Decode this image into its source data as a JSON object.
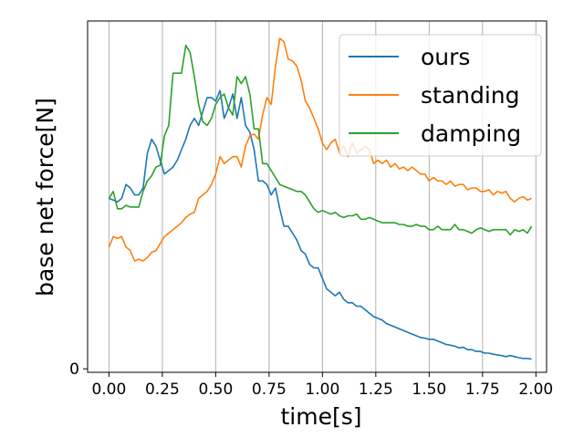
{
  "chart_data": {
    "type": "line",
    "xlabel": "time[s]",
    "ylabel": "base net force[N]",
    "xlim": [
      -0.1,
      2.05
    ],
    "ylim": [
      -0.1,
      10.0
    ],
    "x_ticks": [
      "0.00",
      "0.25",
      "0.50",
      "0.75",
      "1.00",
      "1.25",
      "1.50",
      "1.75",
      "2.00"
    ],
    "x_tick_values": [
      0,
      0.25,
      0.5,
      0.75,
      1.0,
      1.25,
      1.5,
      1.75,
      2.0
    ],
    "y_ticks": [
      "0"
    ],
    "y_tick_values": [
      0
    ],
    "grid": "vertical",
    "legend_position": "top-right",
    "series": [
      {
        "name": "ours",
        "color": "#1f77b4",
        "points": [
          [
            0,
            4.9
          ],
          [
            0.02,
            4.85
          ],
          [
            0.04,
            4.8
          ],
          [
            0.06,
            4.9
          ],
          [
            0.08,
            5.3
          ],
          [
            0.1,
            5.2
          ],
          [
            0.12,
            5.0
          ],
          [
            0.14,
            5.0
          ],
          [
            0.16,
            5.2
          ],
          [
            0.18,
            6.2
          ],
          [
            0.2,
            6.6
          ],
          [
            0.22,
            6.4
          ],
          [
            0.24,
            6.0
          ],
          [
            0.26,
            5.6
          ],
          [
            0.28,
            5.7
          ],
          [
            0.3,
            5.8
          ],
          [
            0.32,
            6.0
          ],
          [
            0.34,
            6.3
          ],
          [
            0.36,
            6.6
          ],
          [
            0.38,
            7.0
          ],
          [
            0.4,
            7.2
          ],
          [
            0.42,
            7.0
          ],
          [
            0.44,
            7.4
          ],
          [
            0.46,
            7.8
          ],
          [
            0.48,
            7.8
          ],
          [
            0.5,
            7.7
          ],
          [
            0.52,
            8.0
          ],
          [
            0.54,
            7.2
          ],
          [
            0.56,
            7.5
          ],
          [
            0.58,
            7.9
          ],
          [
            0.6,
            7.2
          ],
          [
            0.62,
            7.8
          ],
          [
            0.64,
            7.0
          ],
          [
            0.66,
            6.8
          ],
          [
            0.68,
            6.3
          ],
          [
            0.7,
            5.4
          ],
          [
            0.72,
            5.4
          ],
          [
            0.74,
            5.3
          ],
          [
            0.76,
            5.0
          ],
          [
            0.78,
            5.2
          ],
          [
            0.8,
            4.6
          ],
          [
            0.82,
            4.1
          ],
          [
            0.84,
            4.1
          ],
          [
            0.86,
            3.9
          ],
          [
            0.88,
            3.7
          ],
          [
            0.9,
            3.4
          ],
          [
            0.92,
            3.3
          ],
          [
            0.94,
            3.0
          ],
          [
            0.96,
            2.9
          ],
          [
            0.98,
            2.9
          ],
          [
            1.0,
            2.6
          ],
          [
            1.02,
            2.3
          ],
          [
            1.04,
            2.2
          ],
          [
            1.06,
            2.1
          ],
          [
            1.08,
            2.2
          ],
          [
            1.1,
            2.0
          ],
          [
            1.12,
            1.9
          ],
          [
            1.14,
            1.9
          ],
          [
            1.16,
            1.8
          ],
          [
            1.18,
            1.8
          ],
          [
            1.2,
            1.7
          ],
          [
            1.22,
            1.6
          ],
          [
            1.24,
            1.5
          ],
          [
            1.26,
            1.45
          ],
          [
            1.28,
            1.4
          ],
          [
            1.3,
            1.3
          ],
          [
            1.32,
            1.25
          ],
          [
            1.34,
            1.2
          ],
          [
            1.36,
            1.15
          ],
          [
            1.38,
            1.1
          ],
          [
            1.4,
            1.05
          ],
          [
            1.42,
            1.0
          ],
          [
            1.44,
            0.95
          ],
          [
            1.46,
            0.9
          ],
          [
            1.48,
            0.88
          ],
          [
            1.5,
            0.85
          ],
          [
            1.52,
            0.85
          ],
          [
            1.54,
            0.8
          ],
          [
            1.56,
            0.75
          ],
          [
            1.58,
            0.7
          ],
          [
            1.6,
            0.68
          ],
          [
            1.62,
            0.65
          ],
          [
            1.64,
            0.6
          ],
          [
            1.66,
            0.62
          ],
          [
            1.68,
            0.55
          ],
          [
            1.7,
            0.55
          ],
          [
            1.72,
            0.5
          ],
          [
            1.74,
            0.5
          ],
          [
            1.76,
            0.45
          ],
          [
            1.78,
            0.45
          ],
          [
            1.8,
            0.42
          ],
          [
            1.82,
            0.4
          ],
          [
            1.84,
            0.38
          ],
          [
            1.86,
            0.35
          ],
          [
            1.88,
            0.38
          ],
          [
            1.9,
            0.35
          ],
          [
            1.92,
            0.32
          ],
          [
            1.94,
            0.3
          ],
          [
            1.96,
            0.3
          ],
          [
            1.98,
            0.28
          ]
        ]
      },
      {
        "name": "standing",
        "color": "#ff7f0e",
        "points": [
          [
            0,
            3.5
          ],
          [
            0.02,
            3.8
          ],
          [
            0.04,
            3.75
          ],
          [
            0.06,
            3.8
          ],
          [
            0.08,
            3.5
          ],
          [
            0.1,
            3.4
          ],
          [
            0.12,
            3.1
          ],
          [
            0.14,
            3.15
          ],
          [
            0.16,
            3.1
          ],
          [
            0.18,
            3.2
          ],
          [
            0.2,
            3.35
          ],
          [
            0.22,
            3.4
          ],
          [
            0.24,
            3.6
          ],
          [
            0.26,
            3.8
          ],
          [
            0.28,
            3.9
          ],
          [
            0.3,
            4.0
          ],
          [
            0.32,
            4.1
          ],
          [
            0.34,
            4.2
          ],
          [
            0.36,
            4.35
          ],
          [
            0.38,
            4.45
          ],
          [
            0.4,
            4.5
          ],
          [
            0.42,
            4.9
          ],
          [
            0.44,
            5.0
          ],
          [
            0.46,
            5.1
          ],
          [
            0.48,
            5.3
          ],
          [
            0.5,
            5.6
          ],
          [
            0.52,
            6.1
          ],
          [
            0.54,
            5.9
          ],
          [
            0.56,
            6.0
          ],
          [
            0.58,
            6.1
          ],
          [
            0.6,
            6.1
          ],
          [
            0.62,
            5.8
          ],
          [
            0.64,
            6.4
          ],
          [
            0.66,
            6.7
          ],
          [
            0.68,
            6.75
          ],
          [
            0.7,
            6.6
          ],
          [
            0.72,
            7.3
          ],
          [
            0.74,
            7.8
          ],
          [
            0.76,
            7.6
          ],
          [
            0.78,
            8.7
          ],
          [
            0.8,
            9.5
          ],
          [
            0.82,
            9.4
          ],
          [
            0.84,
            8.9
          ],
          [
            0.86,
            8.85
          ],
          [
            0.88,
            8.7
          ],
          [
            0.9,
            8.3
          ],
          [
            0.92,
            7.7
          ],
          [
            0.94,
            7.5
          ],
          [
            0.96,
            7.2
          ],
          [
            0.98,
            6.9
          ],
          [
            1.0,
            6.5
          ],
          [
            1.02,
            6.3
          ],
          [
            1.04,
            6.5
          ],
          [
            1.06,
            6.6
          ],
          [
            1.08,
            6.2
          ],
          [
            1.1,
            6.4
          ],
          [
            1.12,
            6.1
          ],
          [
            1.14,
            6.5
          ],
          [
            1.16,
            6.2
          ],
          [
            1.18,
            6.3
          ],
          [
            1.2,
            6.4
          ],
          [
            1.22,
            6.3
          ],
          [
            1.24,
            5.9
          ],
          [
            1.26,
            6.0
          ],
          [
            1.28,
            5.9
          ],
          [
            1.3,
            6.0
          ],
          [
            1.32,
            5.8
          ],
          [
            1.34,
            5.9
          ],
          [
            1.36,
            5.75
          ],
          [
            1.38,
            5.8
          ],
          [
            1.4,
            5.7
          ],
          [
            1.42,
            5.8
          ],
          [
            1.44,
            5.7
          ],
          [
            1.46,
            5.6
          ],
          [
            1.48,
            5.6
          ],
          [
            1.5,
            5.4
          ],
          [
            1.52,
            5.5
          ],
          [
            1.54,
            5.4
          ],
          [
            1.56,
            5.4
          ],
          [
            1.58,
            5.3
          ],
          [
            1.6,
            5.4
          ],
          [
            1.62,
            5.25
          ],
          [
            1.64,
            5.3
          ],
          [
            1.66,
            5.3
          ],
          [
            1.68,
            5.15
          ],
          [
            1.7,
            5.2
          ],
          [
            1.72,
            5.2
          ],
          [
            1.74,
            5.1
          ],
          [
            1.76,
            5.1
          ],
          [
            1.78,
            5.15
          ],
          [
            1.8,
            5.0
          ],
          [
            1.82,
            5.1
          ],
          [
            1.84,
            5.05
          ],
          [
            1.86,
            5.1
          ],
          [
            1.88,
            4.9
          ],
          [
            1.9,
            4.8
          ],
          [
            1.92,
            4.9
          ],
          [
            1.94,
            4.95
          ],
          [
            1.96,
            4.85
          ],
          [
            1.98,
            4.9
          ]
        ]
      },
      {
        "name": "damping",
        "color": "#2ca02c",
        "points": [
          [
            0,
            4.9
          ],
          [
            0.02,
            5.1
          ],
          [
            0.04,
            4.6
          ],
          [
            0.06,
            4.6
          ],
          [
            0.08,
            4.7
          ],
          [
            0.1,
            4.65
          ],
          [
            0.12,
            4.65
          ],
          [
            0.14,
            4.65
          ],
          [
            0.16,
            5.1
          ],
          [
            0.18,
            5.4
          ],
          [
            0.2,
            5.55
          ],
          [
            0.22,
            5.8
          ],
          [
            0.24,
            5.85
          ],
          [
            0.26,
            6.7
          ],
          [
            0.28,
            7.0
          ],
          [
            0.3,
            8.5
          ],
          [
            0.32,
            8.5
          ],
          [
            0.34,
            8.5
          ],
          [
            0.36,
            9.3
          ],
          [
            0.38,
            9.1
          ],
          [
            0.4,
            8.4
          ],
          [
            0.42,
            7.6
          ],
          [
            0.44,
            7.1
          ],
          [
            0.46,
            7.0
          ],
          [
            0.48,
            7.2
          ],
          [
            0.5,
            7.6
          ],
          [
            0.52,
            7.8
          ],
          [
            0.54,
            7.9
          ],
          [
            0.56,
            7.5
          ],
          [
            0.58,
            7.3
          ],
          [
            0.6,
            8.4
          ],
          [
            0.62,
            8.2
          ],
          [
            0.64,
            8.4
          ],
          [
            0.66,
            7.9
          ],
          [
            0.68,
            6.9
          ],
          [
            0.7,
            6.9
          ],
          [
            0.72,
            5.9
          ],
          [
            0.74,
            5.9
          ],
          [
            0.76,
            5.7
          ],
          [
            0.78,
            5.5
          ],
          [
            0.8,
            5.3
          ],
          [
            0.82,
            5.25
          ],
          [
            0.84,
            5.2
          ],
          [
            0.86,
            5.15
          ],
          [
            0.88,
            5.1
          ],
          [
            0.9,
            5.1
          ],
          [
            0.92,
            5.0
          ],
          [
            0.94,
            4.8
          ],
          [
            0.96,
            4.6
          ],
          [
            0.98,
            4.5
          ],
          [
            1.0,
            4.55
          ],
          [
            1.02,
            4.5
          ],
          [
            1.04,
            4.45
          ],
          [
            1.06,
            4.5
          ],
          [
            1.08,
            4.4
          ],
          [
            1.1,
            4.35
          ],
          [
            1.12,
            4.4
          ],
          [
            1.14,
            4.4
          ],
          [
            1.16,
            4.45
          ],
          [
            1.18,
            4.3
          ],
          [
            1.2,
            4.3
          ],
          [
            1.22,
            4.35
          ],
          [
            1.24,
            4.3
          ],
          [
            1.26,
            4.25
          ],
          [
            1.28,
            4.2
          ],
          [
            1.3,
            4.2
          ],
          [
            1.32,
            4.2
          ],
          [
            1.34,
            4.2
          ],
          [
            1.36,
            4.15
          ],
          [
            1.38,
            4.15
          ],
          [
            1.4,
            4.1
          ],
          [
            1.42,
            4.1
          ],
          [
            1.44,
            4.15
          ],
          [
            1.46,
            4.1
          ],
          [
            1.48,
            4.1
          ],
          [
            1.5,
            4.0
          ],
          [
            1.52,
            4.0
          ],
          [
            1.54,
            4.1
          ],
          [
            1.56,
            4.0
          ],
          [
            1.58,
            4.0
          ],
          [
            1.6,
            4.0
          ],
          [
            1.62,
            4.15
          ],
          [
            1.64,
            4.0
          ],
          [
            1.66,
            4.0
          ],
          [
            1.68,
            3.95
          ],
          [
            1.7,
            3.9
          ],
          [
            1.72,
            4.0
          ],
          [
            1.74,
            4.05
          ],
          [
            1.76,
            4.0
          ],
          [
            1.78,
            3.95
          ],
          [
            1.8,
            4.0
          ],
          [
            1.82,
            4.0
          ],
          [
            1.84,
            4.0
          ],
          [
            1.86,
            4.0
          ],
          [
            1.88,
            3.85
          ],
          [
            1.9,
            4.0
          ],
          [
            1.92,
            3.95
          ],
          [
            1.94,
            4.0
          ],
          [
            1.96,
            3.9
          ],
          [
            1.98,
            4.1
          ]
        ]
      }
    ]
  }
}
